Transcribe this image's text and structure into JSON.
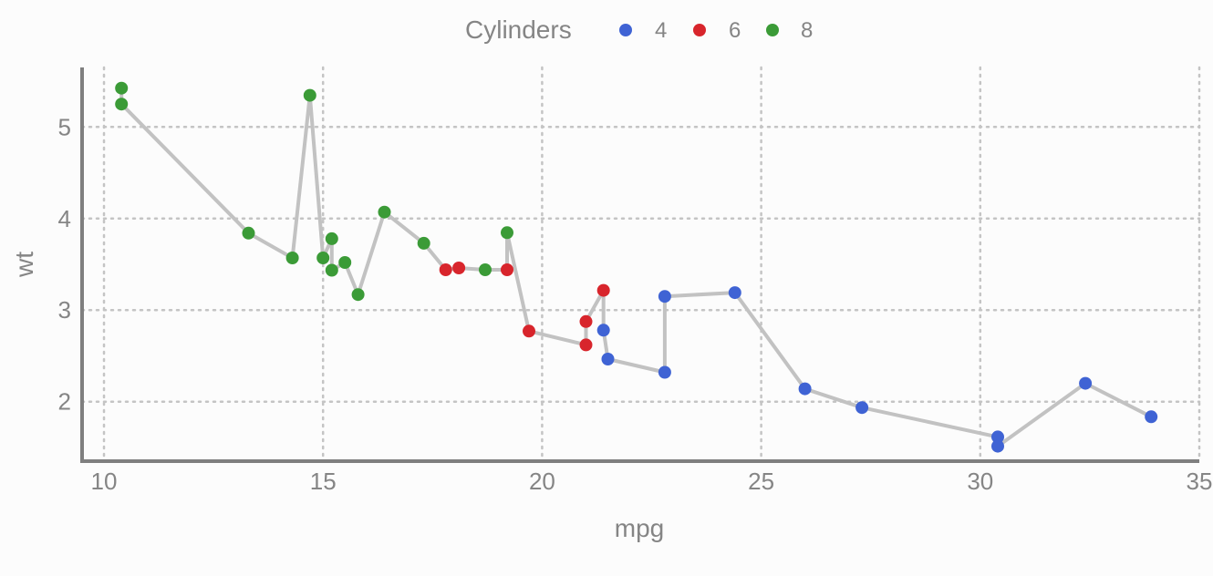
{
  "chart_data": {
    "type": "scatter",
    "title": "",
    "xlabel": "mpg",
    "ylabel": "wt",
    "xlim": [
      9.5,
      35
    ],
    "ylim": [
      1.35,
      5.65
    ],
    "xticks": [
      10,
      15,
      20,
      25,
      30,
      35
    ],
    "yticks": [
      2,
      3,
      4,
      5
    ],
    "xtick_labels": [
      "10",
      "15",
      "20",
      "25",
      "30",
      "35"
    ],
    "ytick_labels": [
      "2",
      "3",
      "4",
      "5"
    ],
    "grid": true,
    "legend": {
      "title": "Cylinders",
      "position": "top",
      "entries": [
        {
          "label": "4",
          "color": "#3f63d4"
        },
        {
          "label": "6",
          "color": "#d8252c"
        },
        {
          "label": "8",
          "color": "#3b9b37"
        }
      ]
    },
    "connecting_line_color": "#c2c2c2",
    "series": [
      {
        "name": "4",
        "color": "#3f63d4",
        "points": [
          {
            "x": 21.4,
            "y": 2.78
          },
          {
            "x": 21.5,
            "y": 2.465
          },
          {
            "x": 22.8,
            "y": 2.32
          },
          {
            "x": 22.8,
            "y": 3.15
          },
          {
            "x": 24.4,
            "y": 3.19
          },
          {
            "x": 26.0,
            "y": 2.14
          },
          {
            "x": 27.3,
            "y": 1.935
          },
          {
            "x": 30.4,
            "y": 1.615
          },
          {
            "x": 30.4,
            "y": 1.513
          },
          {
            "x": 32.4,
            "y": 2.2
          },
          {
            "x": 33.9,
            "y": 1.835
          }
        ]
      },
      {
        "name": "6",
        "color": "#d8252c",
        "points": [
          {
            "x": 17.8,
            "y": 3.44
          },
          {
            "x": 18.1,
            "y": 3.46
          },
          {
            "x": 19.2,
            "y": 3.44
          },
          {
            "x": 19.7,
            "y": 2.77
          },
          {
            "x": 21.0,
            "y": 2.62
          },
          {
            "x": 21.0,
            "y": 2.875
          },
          {
            "x": 21.4,
            "y": 3.215
          }
        ]
      },
      {
        "name": "8",
        "color": "#3b9b37",
        "points": [
          {
            "x": 10.4,
            "y": 5.25
          },
          {
            "x": 10.4,
            "y": 5.424
          },
          {
            "x": 13.3,
            "y": 3.84
          },
          {
            "x": 14.3,
            "y": 3.57
          },
          {
            "x": 14.7,
            "y": 5.345
          },
          {
            "x": 15.0,
            "y": 3.57
          },
          {
            "x": 15.2,
            "y": 3.78
          },
          {
            "x": 15.2,
            "y": 3.435
          },
          {
            "x": 15.5,
            "y": 3.52
          },
          {
            "x": 15.8,
            "y": 3.17
          },
          {
            "x": 16.4,
            "y": 4.07
          },
          {
            "x": 17.3,
            "y": 3.73
          },
          {
            "x": 18.7,
            "y": 3.44
          },
          {
            "x": 19.2,
            "y": 3.845
          }
        ]
      }
    ],
    "line_order": [
      {
        "x": 10.4,
        "y": 5.424
      },
      {
        "x": 10.4,
        "y": 5.25
      },
      {
        "x": 13.3,
        "y": 3.84
      },
      {
        "x": 14.3,
        "y": 3.57
      },
      {
        "x": 14.7,
        "y": 5.345
      },
      {
        "x": 15.0,
        "y": 3.57
      },
      {
        "x": 15.2,
        "y": 3.78
      },
      {
        "x": 15.2,
        "y": 3.435
      },
      {
        "x": 15.5,
        "y": 3.52
      },
      {
        "x": 15.8,
        "y": 3.17
      },
      {
        "x": 16.4,
        "y": 4.07
      },
      {
        "x": 17.3,
        "y": 3.73
      },
      {
        "x": 17.8,
        "y": 3.44
      },
      {
        "x": 18.1,
        "y": 3.46
      },
      {
        "x": 18.7,
        "y": 3.44
      },
      {
        "x": 19.2,
        "y": 3.44
      },
      {
        "x": 19.2,
        "y": 3.845
      },
      {
        "x": 19.7,
        "y": 2.77
      },
      {
        "x": 21.0,
        "y": 2.62
      },
      {
        "x": 21.0,
        "y": 2.875
      },
      {
        "x": 21.4,
        "y": 3.215
      },
      {
        "x": 21.4,
        "y": 2.78
      },
      {
        "x": 21.5,
        "y": 2.465
      },
      {
        "x": 22.8,
        "y": 2.32
      },
      {
        "x": 22.8,
        "y": 3.15
      },
      {
        "x": 24.4,
        "y": 3.19
      },
      {
        "x": 26.0,
        "y": 2.14
      },
      {
        "x": 27.3,
        "y": 1.935
      },
      {
        "x": 30.4,
        "y": 1.615
      },
      {
        "x": 30.4,
        "y": 1.513
      },
      {
        "x": 32.4,
        "y": 2.2
      },
      {
        "x": 33.9,
        "y": 1.835
      }
    ]
  }
}
